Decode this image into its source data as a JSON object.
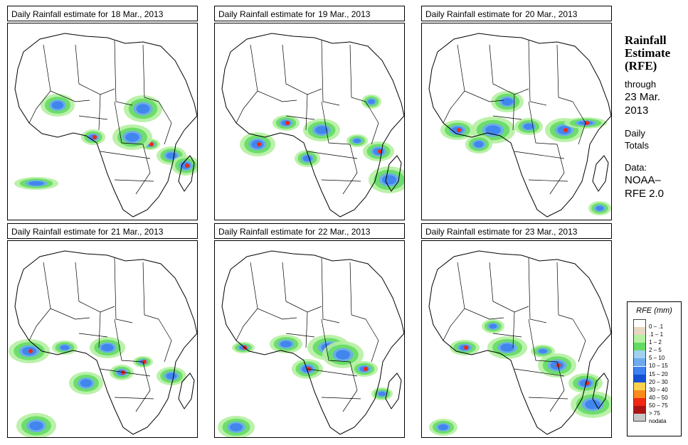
{
  "panels": [
    {
      "title_prefix": "Daily Rainfall estimate for",
      "date": "18 Mar., 2013"
    },
    {
      "title_prefix": "Daily Rainfall estimate for",
      "date": "19 Mar., 2013"
    },
    {
      "title_prefix": "Daily Rainfall estimate for",
      "date": "20 Mar., 2013"
    },
    {
      "title_prefix": "Daily Rainfall estimate for",
      "date": "21 Mar., 2013"
    },
    {
      "title_prefix": "Daily Rainfall estimate for",
      "date": "22 Mar., 2013"
    },
    {
      "title_prefix": "Daily Rainfall estimate for",
      "date": "23 Mar., 2013"
    }
  ],
  "sidebar": {
    "title_line1": "Rainfall",
    "title_line2": "Estimate",
    "title_line3": "(RFE)",
    "through": "through",
    "through_date1": "23 Mar.",
    "through_date2": "2013",
    "daily1": "Daily",
    "daily2": "Totals",
    "data_label": "Data:",
    "data_source1": "NOAA–",
    "data_source2": "RFE 2.0"
  },
  "legend": {
    "title": "RFE (mm)",
    "items": [
      {
        "label": "0 – .1",
        "color": "#ffffff"
      },
      {
        "label": ".1 – 1",
        "color": "#e6d7c3"
      },
      {
        "label": "1 – 2",
        "color": "#b4f0a0"
      },
      {
        "label": "2 – 5",
        "color": "#64dc64"
      },
      {
        "label": "5 – 10",
        "color": "#a0d2f0"
      },
      {
        "label": "10 – 15",
        "color": "#6eaaf0"
      },
      {
        "label": "15 – 20",
        "color": "#3c82f0"
      },
      {
        "label": "20 – 30",
        "color": "#1450d2"
      },
      {
        "label": "30 – 40",
        "color": "#fad250"
      },
      {
        "label": "40 – 50",
        "color": "#fa8c1e"
      },
      {
        "label": "50 – 75",
        "color": "#f02814"
      },
      {
        "label": "> 75",
        "color": "#aa1414"
      },
      {
        "label": "nodata",
        "color": "#c8c8c8"
      }
    ]
  }
}
